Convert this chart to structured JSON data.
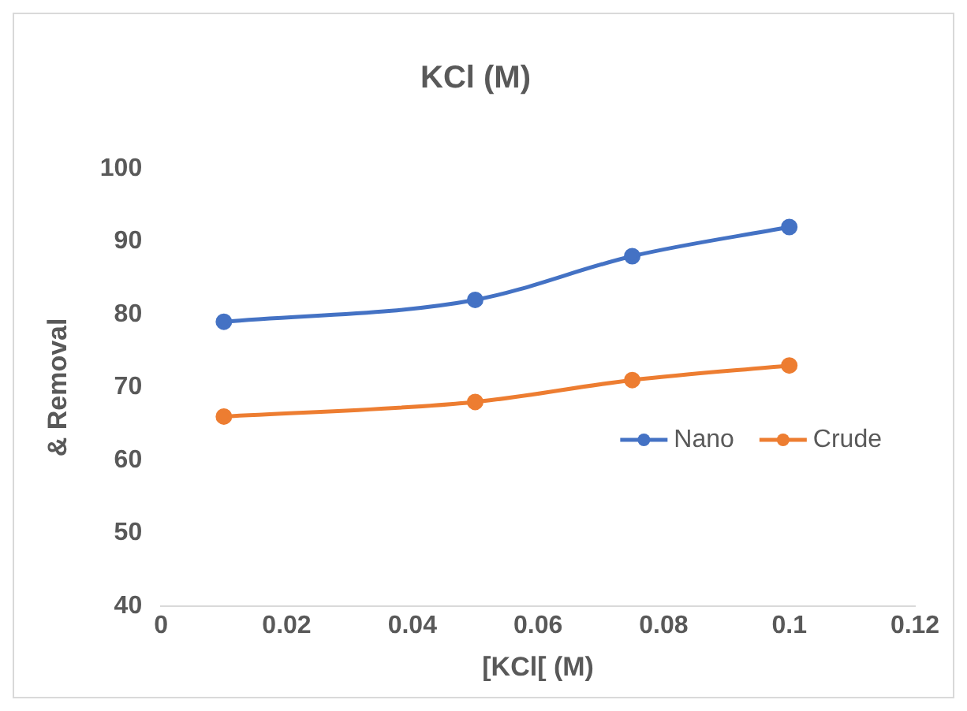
{
  "chart_data": {
    "type": "line",
    "title": "KCl (M)",
    "xlabel": "[KCl[ (M)",
    "ylabel": "& Removal",
    "x": [
      0.01,
      0.05,
      0.075,
      0.1
    ],
    "series": [
      {
        "name": "Nano",
        "color": "#4472c4",
        "values": [
          79,
          82,
          88,
          92
        ]
      },
      {
        "name": "Crude",
        "color": "#ed7d31",
        "values": [
          66,
          68,
          71,
          73
        ]
      }
    ],
    "xlim": [
      0,
      0.12
    ],
    "xticks": [
      0,
      0.02,
      0.04,
      0.06,
      0.08,
      0.1,
      0.12
    ],
    "ylim": [
      40,
      100
    ],
    "yticks": [
      40,
      50,
      60,
      70,
      80,
      90,
      100
    ],
    "grid": false,
    "legend": "right",
    "marker": "circle",
    "line_style": "solid"
  }
}
